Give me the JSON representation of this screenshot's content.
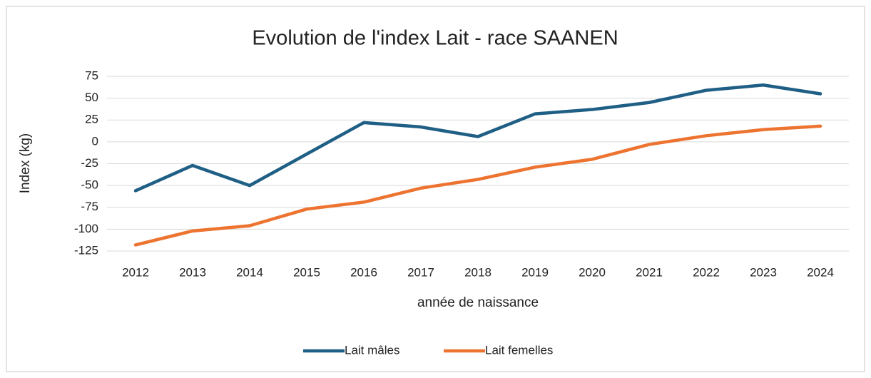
{
  "chart_data": {
    "type": "line",
    "title": "Evolution de l'index Lait - race SAANEN",
    "x_label": "année de naissance",
    "y_label": "Index (kg)",
    "categories": [
      "2012",
      "2013",
      "2014",
      "2015",
      "2016",
      "2017",
      "2018",
      "2019",
      "2020",
      "2021",
      "2022",
      "2023",
      "2024"
    ],
    "series": [
      {
        "name": "Lait mâles",
        "color": "#1f5f85",
        "values": [
          -56,
          -27,
          -50,
          -14,
          22,
          17,
          6,
          32,
          37,
          45,
          59,
          65,
          55
        ]
      },
      {
        "name": "Lait femelles",
        "color": "#ed7430",
        "values": [
          -118,
          -102,
          -96,
          -77,
          -69,
          -53,
          -43,
          -29,
          -20,
          -3,
          7,
          14,
          18
        ]
      }
    ],
    "ylim": [
      -125,
      75
    ],
    "yticks": [
      -125,
      -100,
      -75,
      -50,
      -25,
      0,
      25,
      50,
      75
    ],
    "grid": true,
    "legend": "bottom"
  }
}
